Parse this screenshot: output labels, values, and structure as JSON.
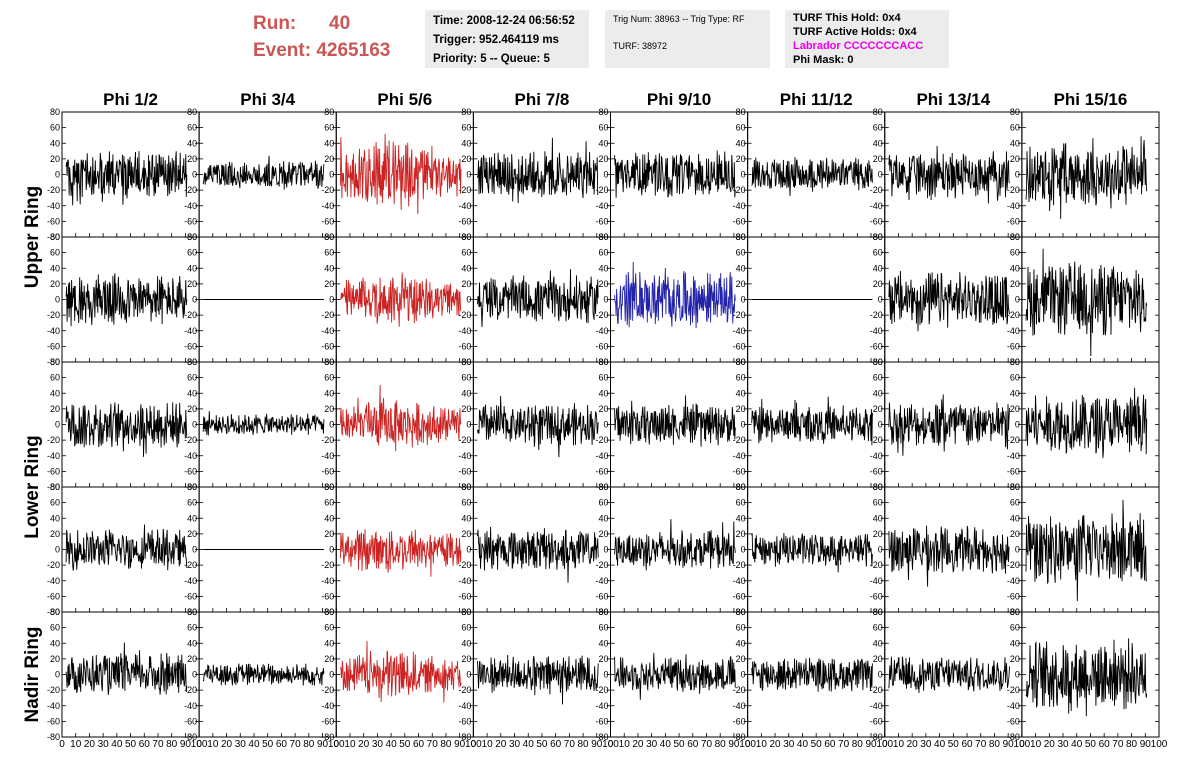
{
  "header": {
    "run_label": "Run:",
    "run_value": "40",
    "event_label": "Event:",
    "event_value": "4265163",
    "time": "Time: 2008-12-24 06:56:52",
    "trigger": "Trigger: 952.464119 ms",
    "priority": "Priority: 5 -- Queue: 5",
    "trig_num": "Trig Num: 38963 -- Trig Type: RF",
    "turf": "TURF: 38972",
    "turf_this_hold": "TURF This Hold: 0x4",
    "turf_active_holds": "TURF Active Holds: 0x4",
    "labrador": "Labrador CCCCCCCACC",
    "phi_mask": "Phi Mask: 0"
  },
  "chart_data": {
    "type": "line",
    "columns": [
      "Phi 1/2",
      "Phi 3/4",
      "Phi 5/6",
      "Phi 7/8",
      "Phi 9/10",
      "Phi 11/12",
      "Phi 13/14",
      "Phi 15/16"
    ],
    "ring_labels": [
      {
        "label": "Upper Ring",
        "rows": [
          0,
          1
        ]
      },
      {
        "label": "Lower Ring",
        "rows": [
          2,
          3
        ]
      },
      {
        "label": "Nadir Ring",
        "rows": [
          4
        ]
      }
    ],
    "xlim": [
      0,
      100
    ],
    "ylim": [
      -80,
      80
    ],
    "x_ticks": [
      "0",
      "10",
      "20",
      "30",
      "40",
      "50",
      "60",
      "70",
      "80",
      "90",
      "100"
    ],
    "y_ticks": [
      "80",
      "60",
      "40",
      "20",
      "0",
      "-20",
      "-40",
      "-60",
      "-80"
    ],
    "colors": {
      "default": "#000000",
      "red": "#cc2222",
      "blue": "#2222aa"
    },
    "panels": [
      [
        {
          "amp": 25,
          "color": "default"
        },
        {
          "amp": 15,
          "color": "default"
        },
        {
          "amp": 38,
          "color": "red"
        },
        {
          "amp": 25,
          "color": "default"
        },
        {
          "amp": 25,
          "color": "default"
        },
        {
          "amp": 18,
          "color": "default"
        },
        {
          "amp": 25,
          "color": "default"
        },
        {
          "amp": 35,
          "color": "default"
        }
      ],
      [
        {
          "amp": 28,
          "color": "default"
        },
        {
          "amp": 0,
          "color": "default"
        },
        {
          "amp": 30,
          "color": "red"
        },
        {
          "amp": 25,
          "color": "default"
        },
        {
          "amp": 30,
          "color": "blue"
        },
        {
          "amp": 0,
          "color": "default"
        },
        {
          "amp": 30,
          "color": "default"
        },
        {
          "amp": 40,
          "color": "default"
        }
      ],
      [
        {
          "amp": 25,
          "color": "default"
        },
        {
          "amp": 12,
          "color": "default"
        },
        {
          "amp": 30,
          "color": "red"
        },
        {
          "amp": 22,
          "color": "default"
        },
        {
          "amp": 22,
          "color": "default"
        },
        {
          "amp": 20,
          "color": "default"
        },
        {
          "amp": 25,
          "color": "default"
        },
        {
          "amp": 32,
          "color": "default"
        }
      ],
      [
        {
          "amp": 22,
          "color": "default"
        },
        {
          "amp": 0,
          "color": "default"
        },
        {
          "amp": 28,
          "color": "red"
        },
        {
          "amp": 22,
          "color": "default"
        },
        {
          "amp": 20,
          "color": "default"
        },
        {
          "amp": 18,
          "color": "default"
        },
        {
          "amp": 25,
          "color": "default"
        },
        {
          "amp": 38,
          "color": "default"
        }
      ],
      [
        {
          "amp": 22,
          "color": "default"
        },
        {
          "amp": 12,
          "color": "default"
        },
        {
          "amp": 28,
          "color": "red"
        },
        {
          "amp": 20,
          "color": "default"
        },
        {
          "amp": 18,
          "color": "default"
        },
        {
          "amp": 18,
          "color": "default"
        },
        {
          "amp": 20,
          "color": "default"
        },
        {
          "amp": 38,
          "color": "default"
        }
      ]
    ]
  }
}
